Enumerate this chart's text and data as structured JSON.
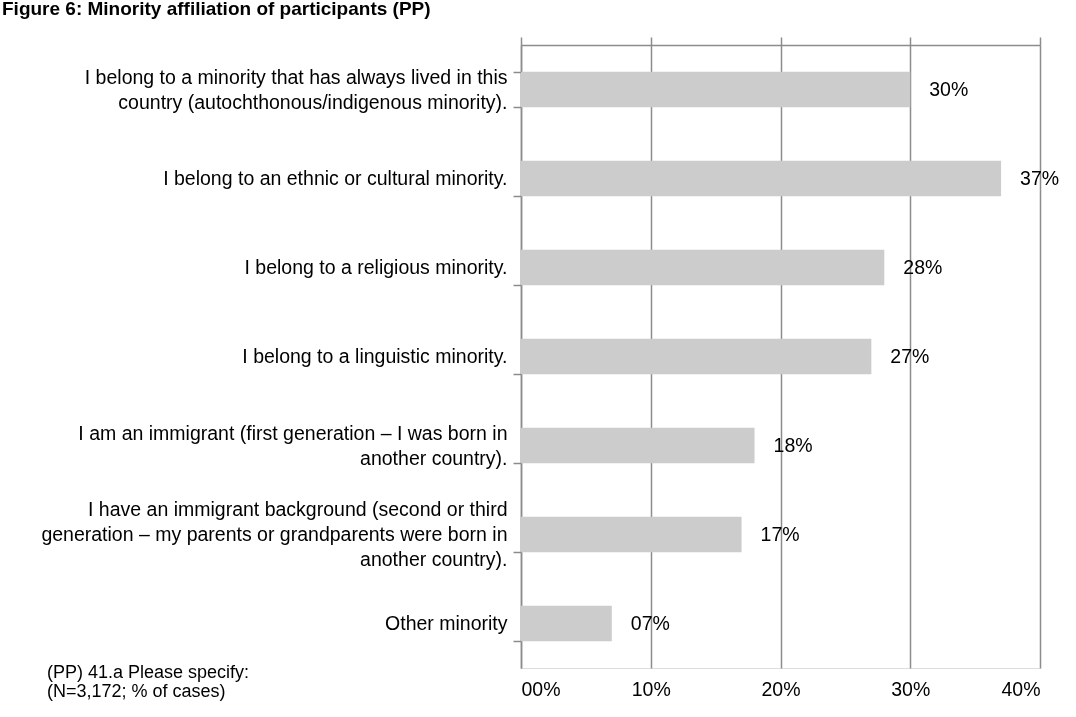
{
  "chart_data": {
    "type": "bar",
    "orientation": "horizontal",
    "title": "Figure 6: Minority affiliation of participants (PP)",
    "categories": [
      "I belong to a minority that has always lived in this country (autochthonous/indigenous minority).",
      "I belong to an ethnic or cultural minority.",
      "I belong to a religious minority.",
      "I belong to a linguistic minority.",
      "I am an immigrant (first generation – I was born in another country).",
      "I have an immigrant background (second or third generation – my parents or grandparents were born in another country).",
      "Other minority"
    ],
    "values": [
      30,
      37,
      28,
      27,
      18,
      17,
      7
    ],
    "value_labels": [
      "30%",
      "37%",
      "28%",
      "27%",
      "18%",
      "17%",
      "07%"
    ],
    "color": "#cccccc",
    "xlim": [
      0,
      40
    ],
    "xticks": [
      {
        "value": 0,
        "label": "00%"
      },
      {
        "value": 10,
        "label": "10%"
      },
      {
        "value": 20,
        "label": "20%"
      },
      {
        "value": 30,
        "label": "30%"
      },
      {
        "value": 40,
        "label": "40%"
      }
    ],
    "grid": "x",
    "annotations": [
      "(PP) 41.a Please specify:",
      "(N=3,172; % of cases)"
    ]
  }
}
